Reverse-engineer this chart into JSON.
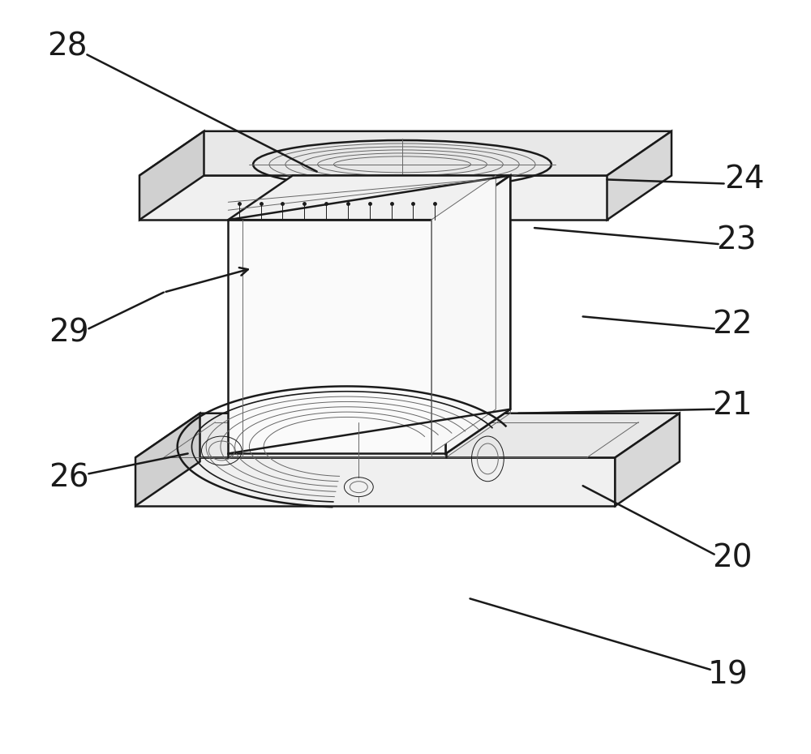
{
  "bg_color": "#ffffff",
  "lc": "#1a1a1a",
  "gc": "#666666",
  "lgc": "#999999",
  "lw_main": 1.8,
  "lw_med": 1.2,
  "lw_thin": 0.7,
  "label_fontsize": 28,
  "figw": 10.0,
  "figh": 9.3
}
